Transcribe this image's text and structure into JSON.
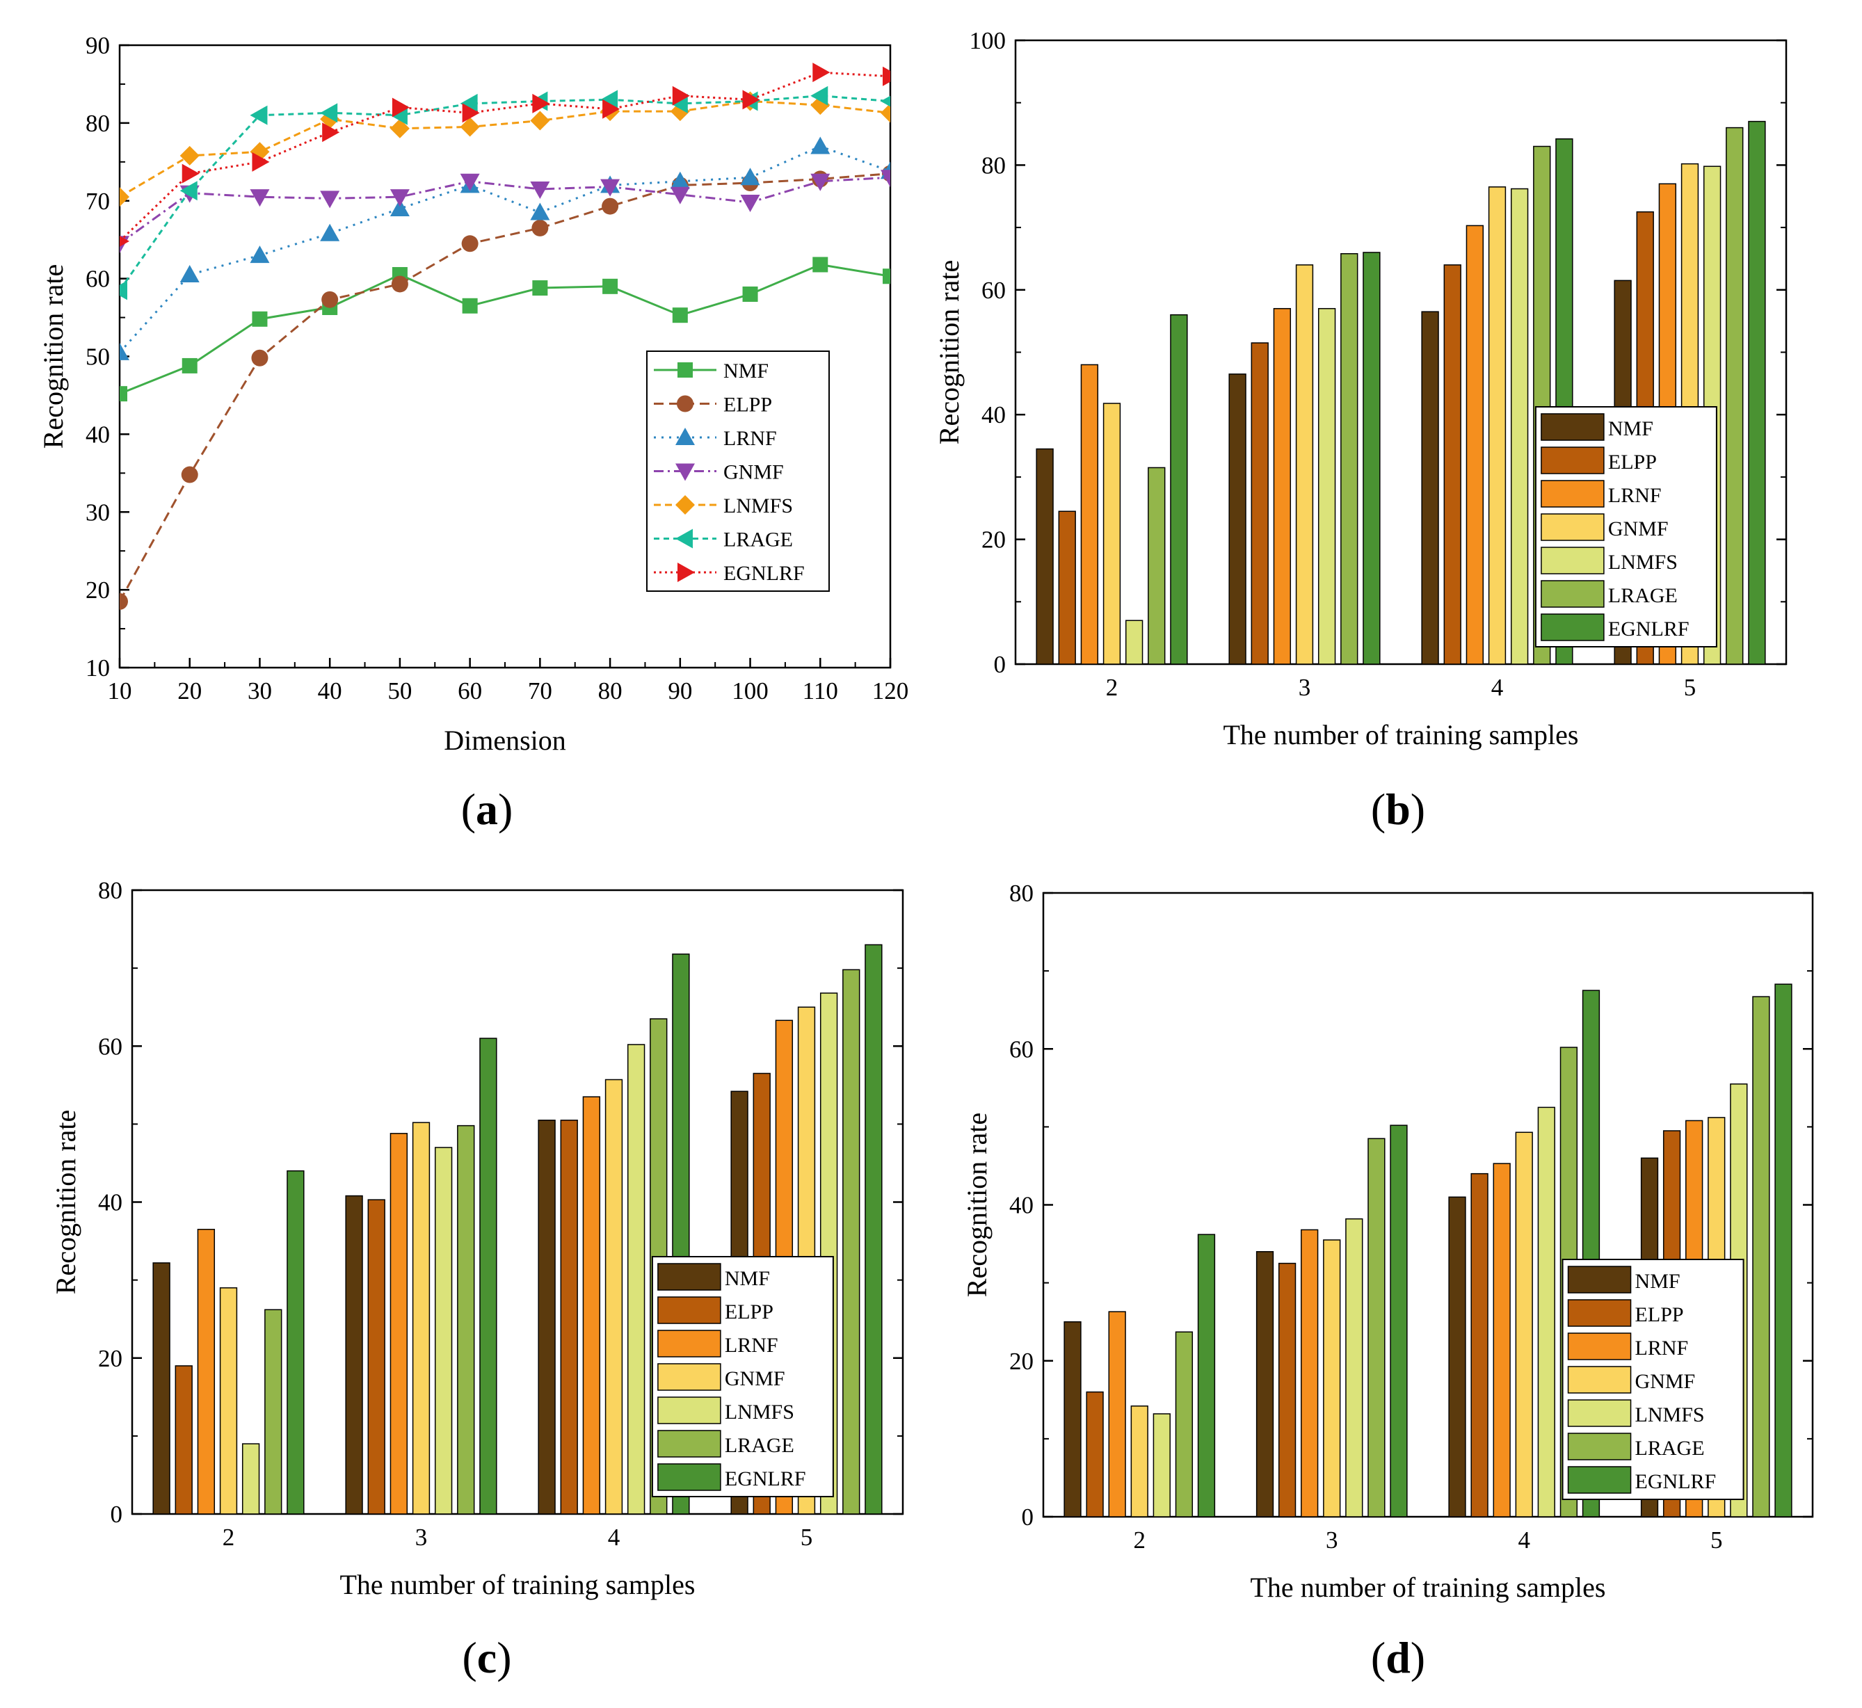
{
  "figure": {
    "series_names": [
      "NMF",
      "ELPP",
      "LRNF",
      "GNMF",
      "LNMFS",
      "LRAGE",
      "EGNLRF"
    ],
    "line_colors": [
      "#3fae49",
      "#a0522d",
      "#2e86c1",
      "#8e44ad",
      "#f39c12",
      "#1abc9c",
      "#e31a1c"
    ],
    "line_markers": [
      "square",
      "circle",
      "triangle-up",
      "triangle-down",
      "diamond",
      "triangle-left",
      "triangle-right"
    ],
    "line_dashes": [
      "",
      "14 8",
      "3 8",
      "14 6 3 6",
      "10 6",
      "8 6",
      "3 5"
    ],
    "bar_colors": [
      "#5b3a0d",
      "#b85c0b",
      "#f58f1e",
      "#fad45f",
      "#dbe37a",
      "#93b64a",
      "#4a9232"
    ]
  },
  "chart_data": [
    {
      "id": "a",
      "type": "line",
      "caption_letter": "a",
      "caption_open": "(",
      "caption_close": ")",
      "xlabel": "Dimension",
      "ylabel": "Recognition rate",
      "xlim": [
        10,
        120
      ],
      "ylim": [
        10,
        90
      ],
      "xticks": [
        10,
        20,
        30,
        40,
        50,
        60,
        70,
        80,
        90,
        100,
        110,
        120
      ],
      "yticks": [
        10,
        20,
        30,
        40,
        50,
        60,
        70,
        80,
        90
      ],
      "legend_position": "right-lower",
      "x": [
        10,
        20,
        30,
        40,
        50,
        60,
        70,
        80,
        90,
        100,
        110,
        120
      ],
      "series": [
        {
          "name": "NMF",
          "values": [
            45.2,
            48.8,
            54.8,
            56.3,
            60.5,
            56.5,
            58.8,
            59,
            55.3,
            58,
            61.8,
            60.3
          ]
        },
        {
          "name": "ELPP",
          "values": [
            18.5,
            34.8,
            49.8,
            57.3,
            59.3,
            64.5,
            66.5,
            69.3,
            72,
            72.3,
            72.8,
            73.5
          ]
        },
        {
          "name": "LRNF",
          "values": [
            50.5,
            60.5,
            63,
            65.8,
            69,
            72,
            68.5,
            72,
            72.5,
            73,
            77,
            73.8
          ]
        },
        {
          "name": "GNMF",
          "values": [
            64.5,
            71,
            70.5,
            70.3,
            70.5,
            72.5,
            71.5,
            71.8,
            70.8,
            69.8,
            72.5,
            73
          ]
        },
        {
          "name": "LNMFS",
          "values": [
            70.5,
            75.8,
            76.3,
            80.5,
            79.3,
            79.5,
            80.3,
            81.5,
            81.5,
            82.8,
            82.3,
            81.3
          ]
        },
        {
          "name": "LRAGE",
          "values": [
            58.5,
            71.3,
            81,
            81.3,
            81,
            82.5,
            82.8,
            83,
            82.5,
            82.8,
            83.5,
            82.8
          ]
        },
        {
          "name": "EGNLRF",
          "values": [
            64.8,
            73.5,
            75,
            78.8,
            82,
            81.3,
            82.5,
            81.8,
            83.5,
            83,
            86.5,
            86
          ]
        }
      ]
    },
    {
      "id": "b",
      "type": "bar",
      "caption_letter": "b",
      "caption_open": "(",
      "caption_close": ")",
      "xlabel": "The number of training samples",
      "ylabel": "Recognition rate",
      "ylim": [
        0,
        100
      ],
      "yticks": [
        0,
        20,
        40,
        60,
        80,
        100
      ],
      "categories": [
        "2",
        "3",
        "4",
        "5"
      ],
      "legend_position": "right-lower",
      "series": [
        {
          "name": "NMF",
          "values": [
            34.5,
            46.5,
            56.5,
            61.5
          ]
        },
        {
          "name": "ELPP",
          "values": [
            24.5,
            51.5,
            64,
            72.5
          ]
        },
        {
          "name": "LRNF",
          "values": [
            48,
            57,
            70.3,
            77
          ]
        },
        {
          "name": "GNMF",
          "values": [
            41.8,
            64,
            76.5,
            80.2
          ]
        },
        {
          "name": "LNMFS",
          "values": [
            7,
            57,
            76.2,
            79.8
          ]
        },
        {
          "name": "LRAGE",
          "values": [
            31.5,
            65.8,
            83,
            86
          ]
        },
        {
          "name": "EGNLRF",
          "values": [
            56,
            66,
            84.2,
            87
          ]
        }
      ]
    },
    {
      "id": "c",
      "type": "bar",
      "caption_letter": "c",
      "caption_open": "(",
      "caption_close": ")",
      "xlabel": "The number of training samples",
      "ylabel": "Recognition rate",
      "ylim": [
        0,
        80
      ],
      "yticks": [
        0,
        20,
        40,
        60,
        80
      ],
      "categories": [
        "2",
        "3",
        "4",
        "5"
      ],
      "legend_position": "right-lower",
      "series": [
        {
          "name": "NMF",
          "values": [
            32.2,
            40.8,
            50.5,
            54.2
          ]
        },
        {
          "name": "ELPP",
          "values": [
            19,
            40.3,
            50.5,
            56.5
          ]
        },
        {
          "name": "LRNF",
          "values": [
            36.5,
            48.8,
            53.5,
            63.3
          ]
        },
        {
          "name": "GNMF",
          "values": [
            29,
            50.2,
            55.7,
            65
          ]
        },
        {
          "name": "LNMFS",
          "values": [
            9,
            47,
            60.2,
            66.8
          ]
        },
        {
          "name": "LRAGE",
          "values": [
            26.2,
            49.8,
            63.5,
            69.8
          ]
        },
        {
          "name": "EGNLRF",
          "values": [
            44,
            61,
            71.8,
            73
          ]
        }
      ]
    },
    {
      "id": "d",
      "type": "bar",
      "caption_letter": "d",
      "caption_open": "(",
      "caption_close": ")",
      "xlabel": "The number of training samples",
      "ylabel": "Recognition rate",
      "ylim": [
        0,
        80
      ],
      "yticks": [
        0,
        20,
        40,
        60,
        80
      ],
      "categories": [
        "2",
        "3",
        "4",
        "5"
      ],
      "legend_position": "right-lower",
      "series": [
        {
          "name": "NMF",
          "values": [
            25,
            34,
            41,
            46
          ]
        },
        {
          "name": "ELPP",
          "values": [
            16,
            32.5,
            44,
            49.5
          ]
        },
        {
          "name": "LRNF",
          "values": [
            26.3,
            36.8,
            45.3,
            50.8
          ]
        },
        {
          "name": "GNMF",
          "values": [
            14.2,
            35.5,
            49.3,
            51.2
          ]
        },
        {
          "name": "LNMFS",
          "values": [
            13.2,
            38.2,
            52.5,
            55.5
          ]
        },
        {
          "name": "LRAGE",
          "values": [
            23.7,
            48.5,
            60.2,
            66.7
          ]
        },
        {
          "name": "EGNLRF",
          "values": [
            36.2,
            50.2,
            67.5,
            68.3
          ]
        }
      ]
    }
  ]
}
